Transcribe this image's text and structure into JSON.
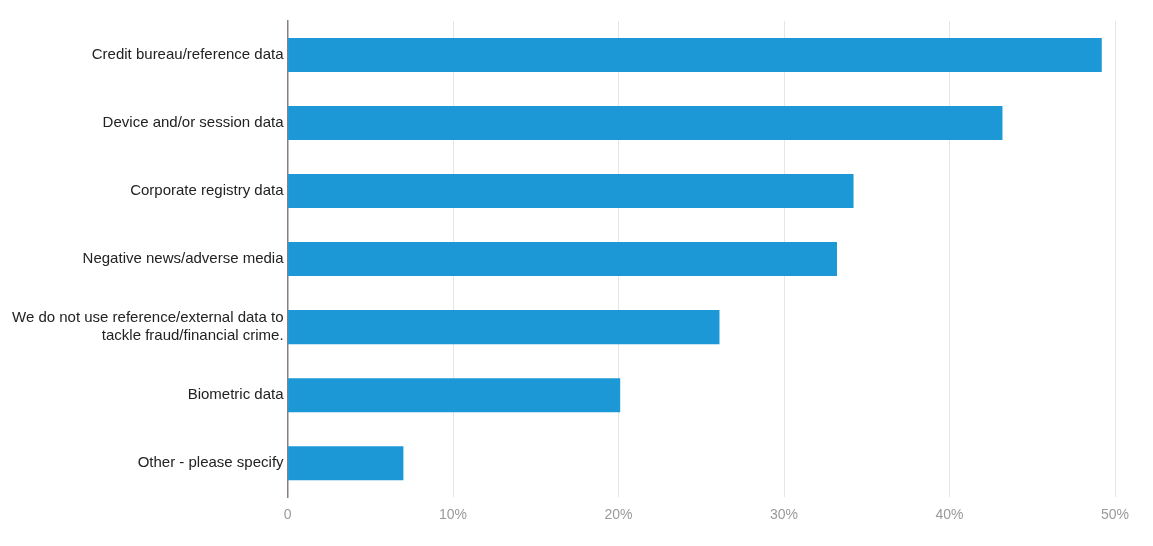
{
  "chart_data": {
    "type": "bar",
    "orientation": "horizontal",
    "categories": [
      "Credit bureau/reference data",
      "Device and/or session data",
      "Corporate registry data",
      "Negative news/adverse media",
      "We do not use reference/external data to tackle fraud/financial crime.",
      "Biometric data",
      "Other - please specify"
    ],
    "values": [
      49.2,
      43.2,
      34.2,
      33.2,
      26.1,
      20.1,
      7.0
    ],
    "color": "#1b98d5",
    "xlim": [
      0,
      50
    ],
    "xticks": [
      {
        "value": 0,
        "label": "0"
      },
      {
        "value": 10,
        "label": "10%"
      },
      {
        "value": 20,
        "label": "20%"
      },
      {
        "value": 30,
        "label": "30%"
      },
      {
        "value": 40,
        "label": "40%"
      },
      {
        "value": 50,
        "label": "50%"
      }
    ],
    "grid": "x",
    "legend": false
  }
}
